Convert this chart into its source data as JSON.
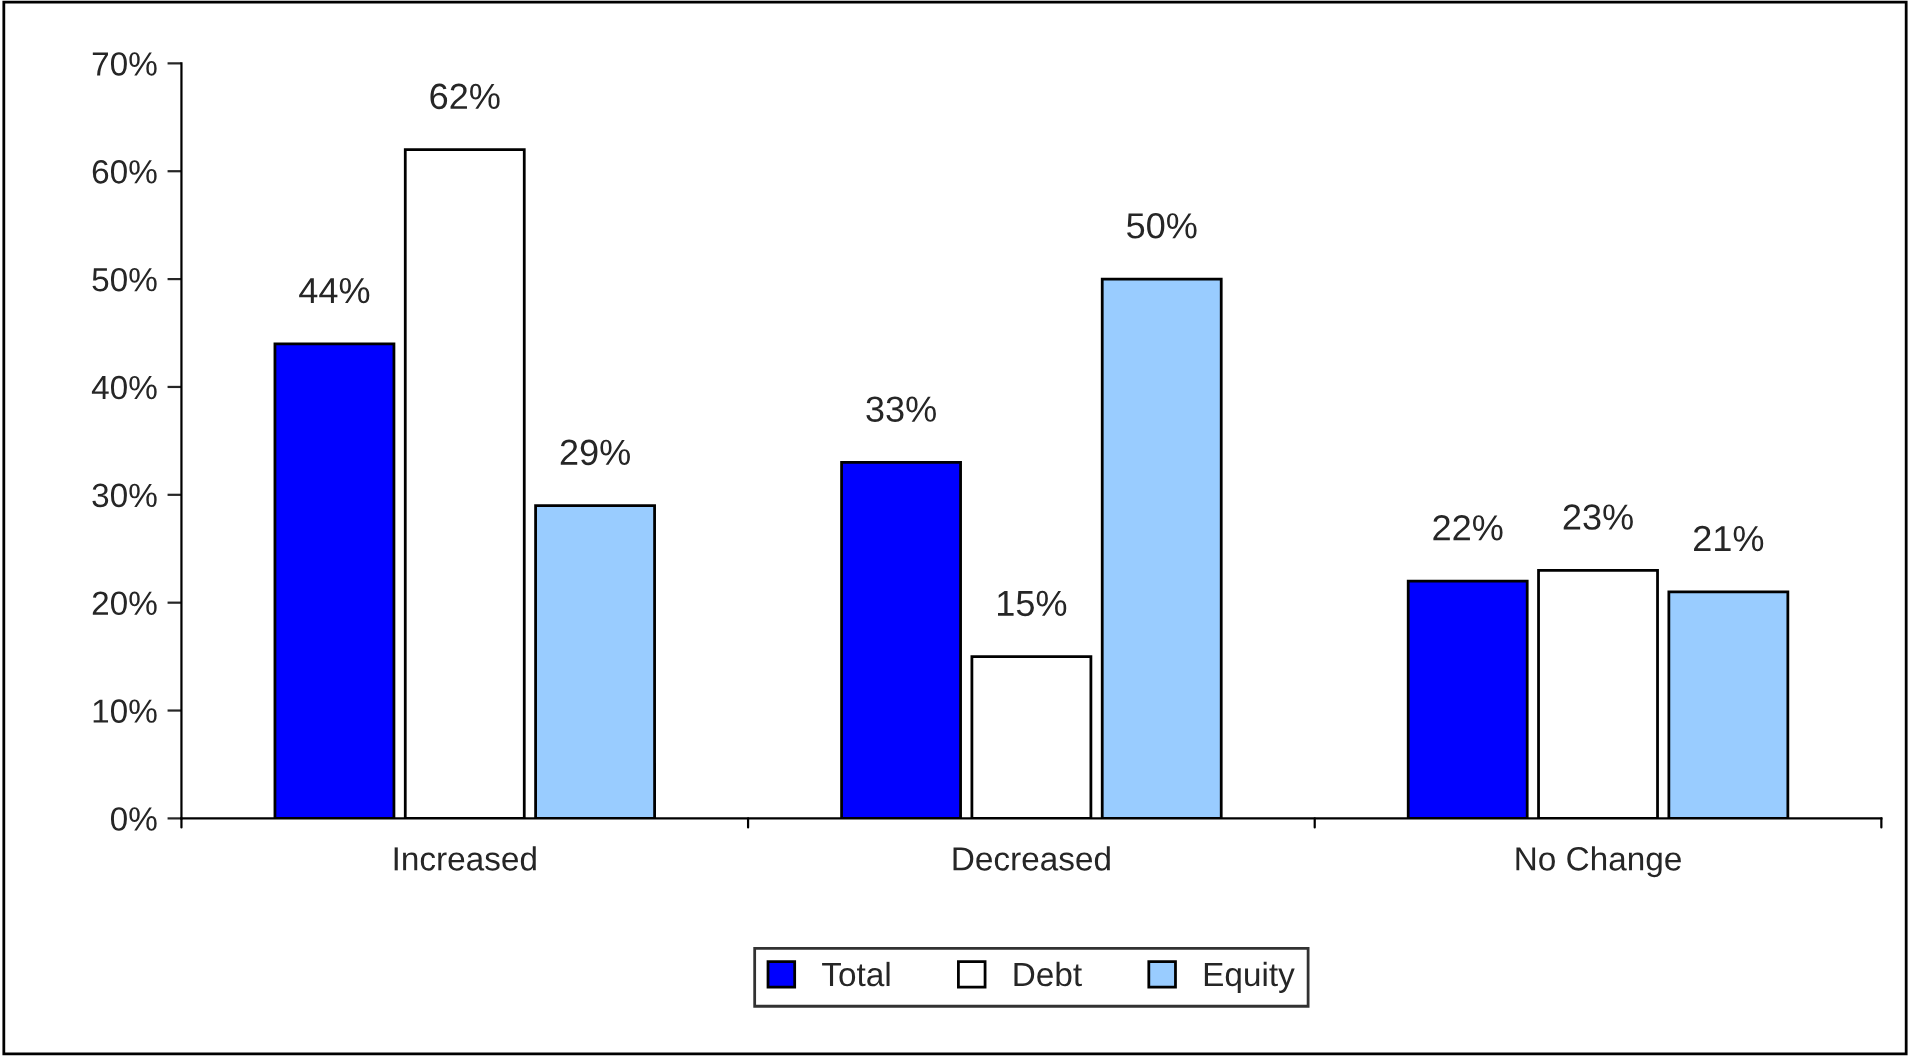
{
  "chart_data": {
    "type": "bar",
    "categories": [
      "Increased",
      "Decreased",
      "No Change"
    ],
    "series": [
      {
        "name": "Total",
        "color": "#0000ff",
        "values": [
          44,
          33,
          22
        ],
        "value_labels": [
          "44%",
          "33%",
          "22%"
        ]
      },
      {
        "name": "Debt",
        "color": "#ffffff",
        "values": [
          62,
          15,
          23
        ],
        "value_labels": [
          "62%",
          "15%",
          "23%"
        ]
      },
      {
        "name": "Equity",
        "color": "#99ccff",
        "values": [
          29,
          50,
          21
        ],
        "value_labels": [
          "29%",
          "50%",
          "21%"
        ]
      }
    ],
    "ylim": [
      0,
      70
    ],
    "yticks": [
      {
        "value": 0,
        "label": "0%"
      },
      {
        "value": 10,
        "label": "10%"
      },
      {
        "value": 20,
        "label": "20%"
      },
      {
        "value": 30,
        "label": "30%"
      },
      {
        "value": 40,
        "label": "40%"
      },
      {
        "value": 50,
        "label": "50%"
      },
      {
        "value": 60,
        "label": "60%"
      },
      {
        "value": 70,
        "label": "70%"
      }
    ],
    "grid": false,
    "legend": "bottom"
  }
}
